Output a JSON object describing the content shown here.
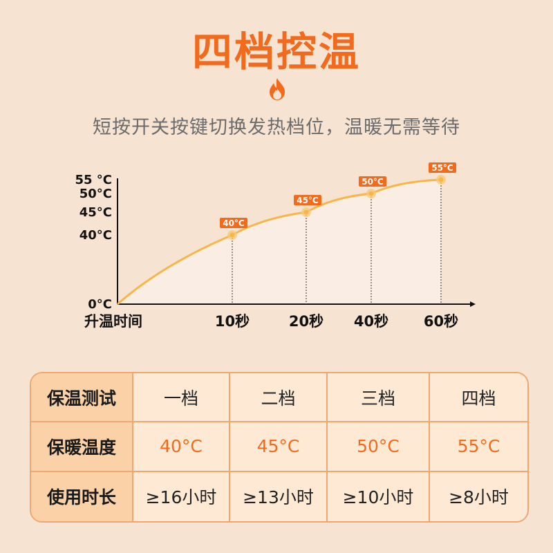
{
  "header": {
    "title": "四档控温",
    "subtitle": "短按开关按键切换发热档位，温暖无需等待",
    "icon": "flame-icon",
    "accent_color": "#f26a1b"
  },
  "chart_data": {
    "type": "line",
    "title": "",
    "xlabel": "升温时间",
    "ylabel": "",
    "x": [
      0,
      10,
      20,
      40,
      60
    ],
    "x_tick_labels": [
      "10秒",
      "20秒",
      "40秒",
      "60秒"
    ],
    "y_tick_labels": [
      "0°C",
      "40°C",
      "45°C",
      "50°C",
      "55 °C"
    ],
    "y_tick_values": [
      0,
      40,
      45,
      50,
      55
    ],
    "series": [
      {
        "values": [
          0,
          40,
          45,
          50,
          55
        ]
      }
    ],
    "point_labels": [
      "40°C",
      "45°C",
      "50°C",
      "55°C"
    ],
    "grid": false,
    "line_color": "#f7b54a",
    "label_color": "#f26a1b"
  },
  "table": {
    "rows": [
      [
        "保温测试",
        "一档",
        "二档",
        "三档",
        "四档"
      ],
      [
        "保暖温度",
        "40°C",
        "45°C",
        "50°C",
        "55°C"
      ],
      [
        "使用时长",
        "≥16小时",
        "≥13小时",
        "≥10小时",
        "≥8小时"
      ]
    ]
  }
}
